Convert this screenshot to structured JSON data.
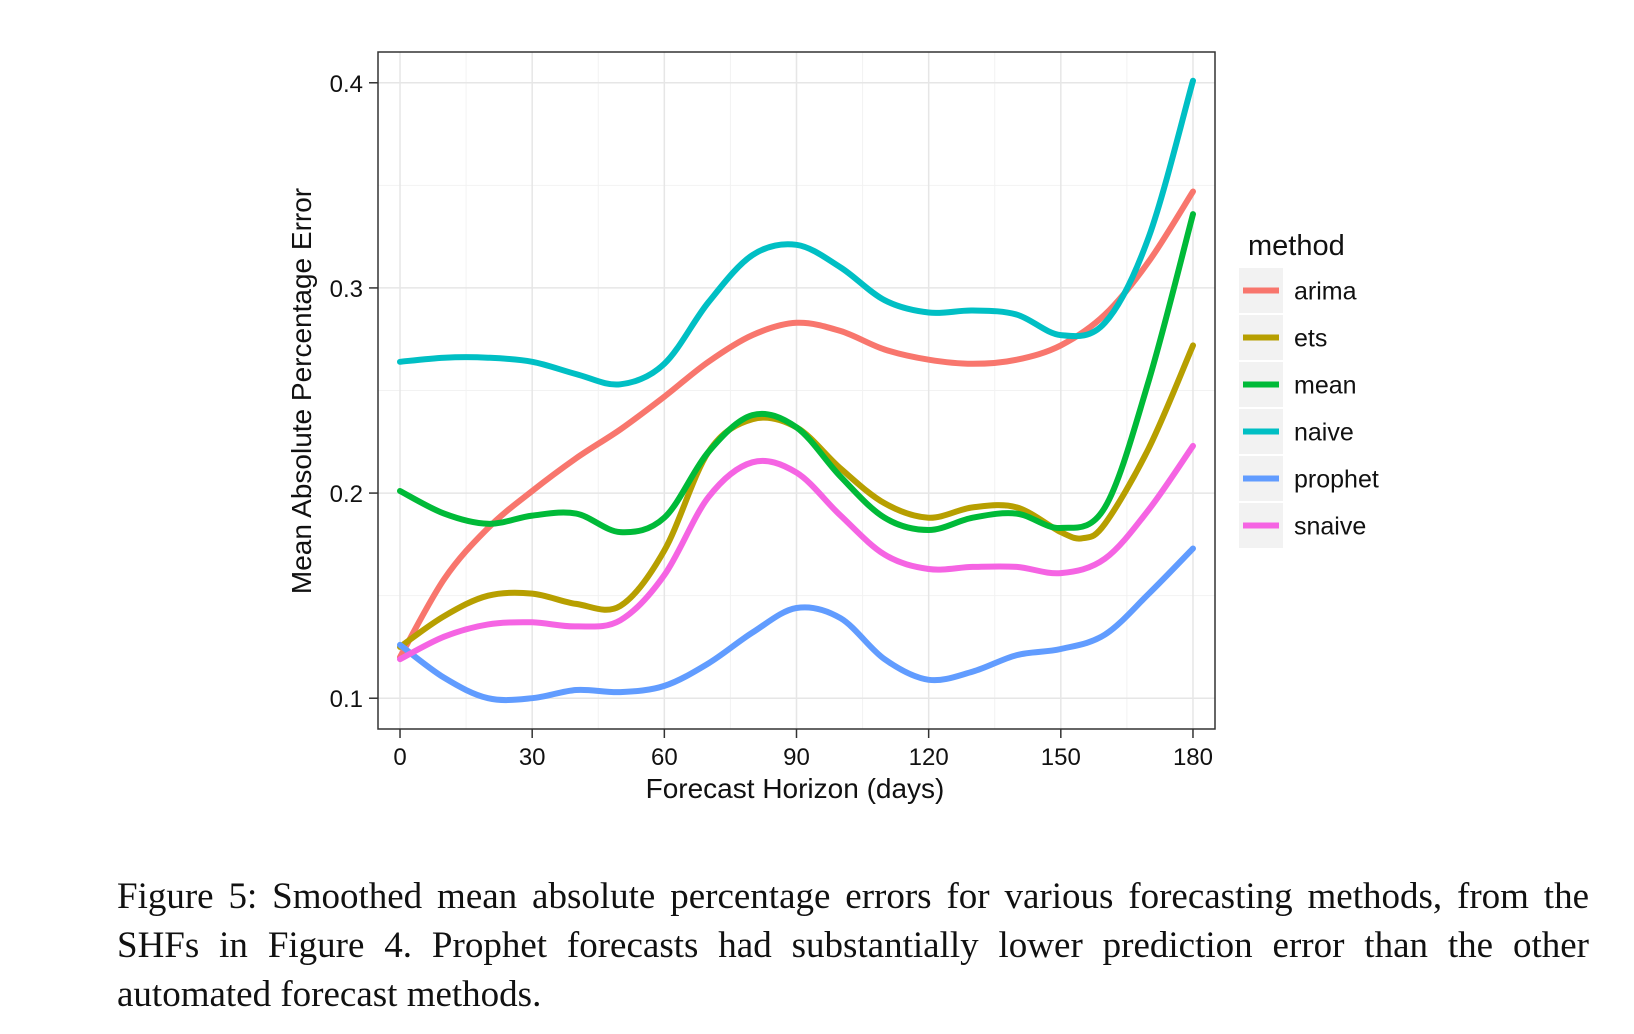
{
  "chart_data": {
    "type": "line",
    "xlabel": "Forecast Horizon (days)",
    "ylabel": "Mean Absolute Percentage Error",
    "xlim": [
      -5,
      185
    ],
    "ylim": [
      0.085,
      0.415
    ],
    "x_ticks": [
      0,
      30,
      60,
      90,
      120,
      150,
      180
    ],
    "y_ticks": [
      0.1,
      0.2,
      0.3,
      0.4
    ],
    "x_tick_labels": [
      "0",
      "30",
      "60",
      "90",
      "120",
      "150",
      "180"
    ],
    "y_tick_labels": [
      "0.1",
      "0.2",
      "0.3",
      "0.4"
    ],
    "grid": true,
    "legend": {
      "title": "method",
      "placement": "right"
    },
    "series": [
      {
        "name": "arima",
        "color": "#F8766D",
        "points": [
          [
            0,
            0.12
          ],
          [
            10,
            0.158
          ],
          [
            20,
            0.183
          ],
          [
            30,
            0.201
          ],
          [
            40,
            0.217
          ],
          [
            50,
            0.231
          ],
          [
            60,
            0.247
          ],
          [
            70,
            0.264
          ],
          [
            80,
            0.277
          ],
          [
            90,
            0.283
          ],
          [
            100,
            0.279
          ],
          [
            110,
            0.27
          ],
          [
            120,
            0.265
          ],
          [
            130,
            0.263
          ],
          [
            140,
            0.265
          ],
          [
            150,
            0.272
          ],
          [
            160,
            0.287
          ],
          [
            170,
            0.313
          ],
          [
            180,
            0.347
          ]
        ]
      },
      {
        "name": "ets",
        "color": "#B79F00",
        "points": [
          [
            0,
            0.125
          ],
          [
            10,
            0.14
          ],
          [
            20,
            0.15
          ],
          [
            30,
            0.151
          ],
          [
            40,
            0.146
          ],
          [
            50,
            0.145
          ],
          [
            60,
            0.172
          ],
          [
            70,
            0.22
          ],
          [
            80,
            0.236
          ],
          [
            90,
            0.232
          ],
          [
            100,
            0.212
          ],
          [
            110,
            0.195
          ],
          [
            120,
            0.188
          ],
          [
            130,
            0.193
          ],
          [
            140,
            0.193
          ],
          [
            150,
            0.181
          ],
          [
            155,
            0.178
          ],
          [
            160,
            0.185
          ],
          [
            170,
            0.222
          ],
          [
            180,
            0.272
          ]
        ]
      },
      {
        "name": "mean",
        "color": "#00BA38",
        "points": [
          [
            0,
            0.201
          ],
          [
            10,
            0.19
          ],
          [
            20,
            0.185
          ],
          [
            30,
            0.189
          ],
          [
            40,
            0.19
          ],
          [
            50,
            0.181
          ],
          [
            60,
            0.188
          ],
          [
            70,
            0.22
          ],
          [
            80,
            0.238
          ],
          [
            90,
            0.232
          ],
          [
            100,
            0.208
          ],
          [
            110,
            0.188
          ],
          [
            120,
            0.182
          ],
          [
            130,
            0.188
          ],
          [
            140,
            0.19
          ],
          [
            150,
            0.183
          ],
          [
            160,
            0.193
          ],
          [
            170,
            0.255
          ],
          [
            180,
            0.336
          ]
        ]
      },
      {
        "name": "naive",
        "color": "#00BFC4",
        "points": [
          [
            0,
            0.264
          ],
          [
            10,
            0.266
          ],
          [
            20,
            0.266
          ],
          [
            30,
            0.264
          ],
          [
            40,
            0.258
          ],
          [
            50,
            0.253
          ],
          [
            60,
            0.263
          ],
          [
            70,
            0.293
          ],
          [
            80,
            0.316
          ],
          [
            90,
            0.321
          ],
          [
            100,
            0.31
          ],
          [
            110,
            0.294
          ],
          [
            120,
            0.288
          ],
          [
            130,
            0.289
          ],
          [
            140,
            0.287
          ],
          [
            150,
            0.277
          ],
          [
            160,
            0.283
          ],
          [
            170,
            0.325
          ],
          [
            180,
            0.401
          ]
        ]
      },
      {
        "name": "prophet",
        "color": "#619CFF",
        "points": [
          [
            0,
            0.126
          ],
          [
            10,
            0.11
          ],
          [
            20,
            0.1
          ],
          [
            30,
            0.1
          ],
          [
            40,
            0.104
          ],
          [
            50,
            0.103
          ],
          [
            60,
            0.106
          ],
          [
            70,
            0.117
          ],
          [
            80,
            0.132
          ],
          [
            90,
            0.144
          ],
          [
            100,
            0.139
          ],
          [
            110,
            0.119
          ],
          [
            120,
            0.109
          ],
          [
            130,
            0.113
          ],
          [
            140,
            0.121
          ],
          [
            150,
            0.124
          ],
          [
            160,
            0.131
          ],
          [
            170,
            0.151
          ],
          [
            180,
            0.173
          ]
        ]
      },
      {
        "name": "snaive",
        "color": "#F564E3",
        "points": [
          [
            0,
            0.119
          ],
          [
            10,
            0.13
          ],
          [
            20,
            0.136
          ],
          [
            30,
            0.137
          ],
          [
            40,
            0.135
          ],
          [
            50,
            0.138
          ],
          [
            60,
            0.16
          ],
          [
            70,
            0.198
          ],
          [
            80,
            0.215
          ],
          [
            90,
            0.21
          ],
          [
            100,
            0.189
          ],
          [
            110,
            0.17
          ],
          [
            120,
            0.163
          ],
          [
            130,
            0.164
          ],
          [
            140,
            0.164
          ],
          [
            150,
            0.161
          ],
          [
            160,
            0.168
          ],
          [
            170,
            0.192
          ],
          [
            180,
            0.223
          ]
        ]
      }
    ]
  },
  "caption": "Figure 5: Smoothed mean absolute percentage errors for various forecasting methods, from the SHFs in Figure 4. Prophet forecasts had substantially lower prediction error than the other automated forecast methods."
}
